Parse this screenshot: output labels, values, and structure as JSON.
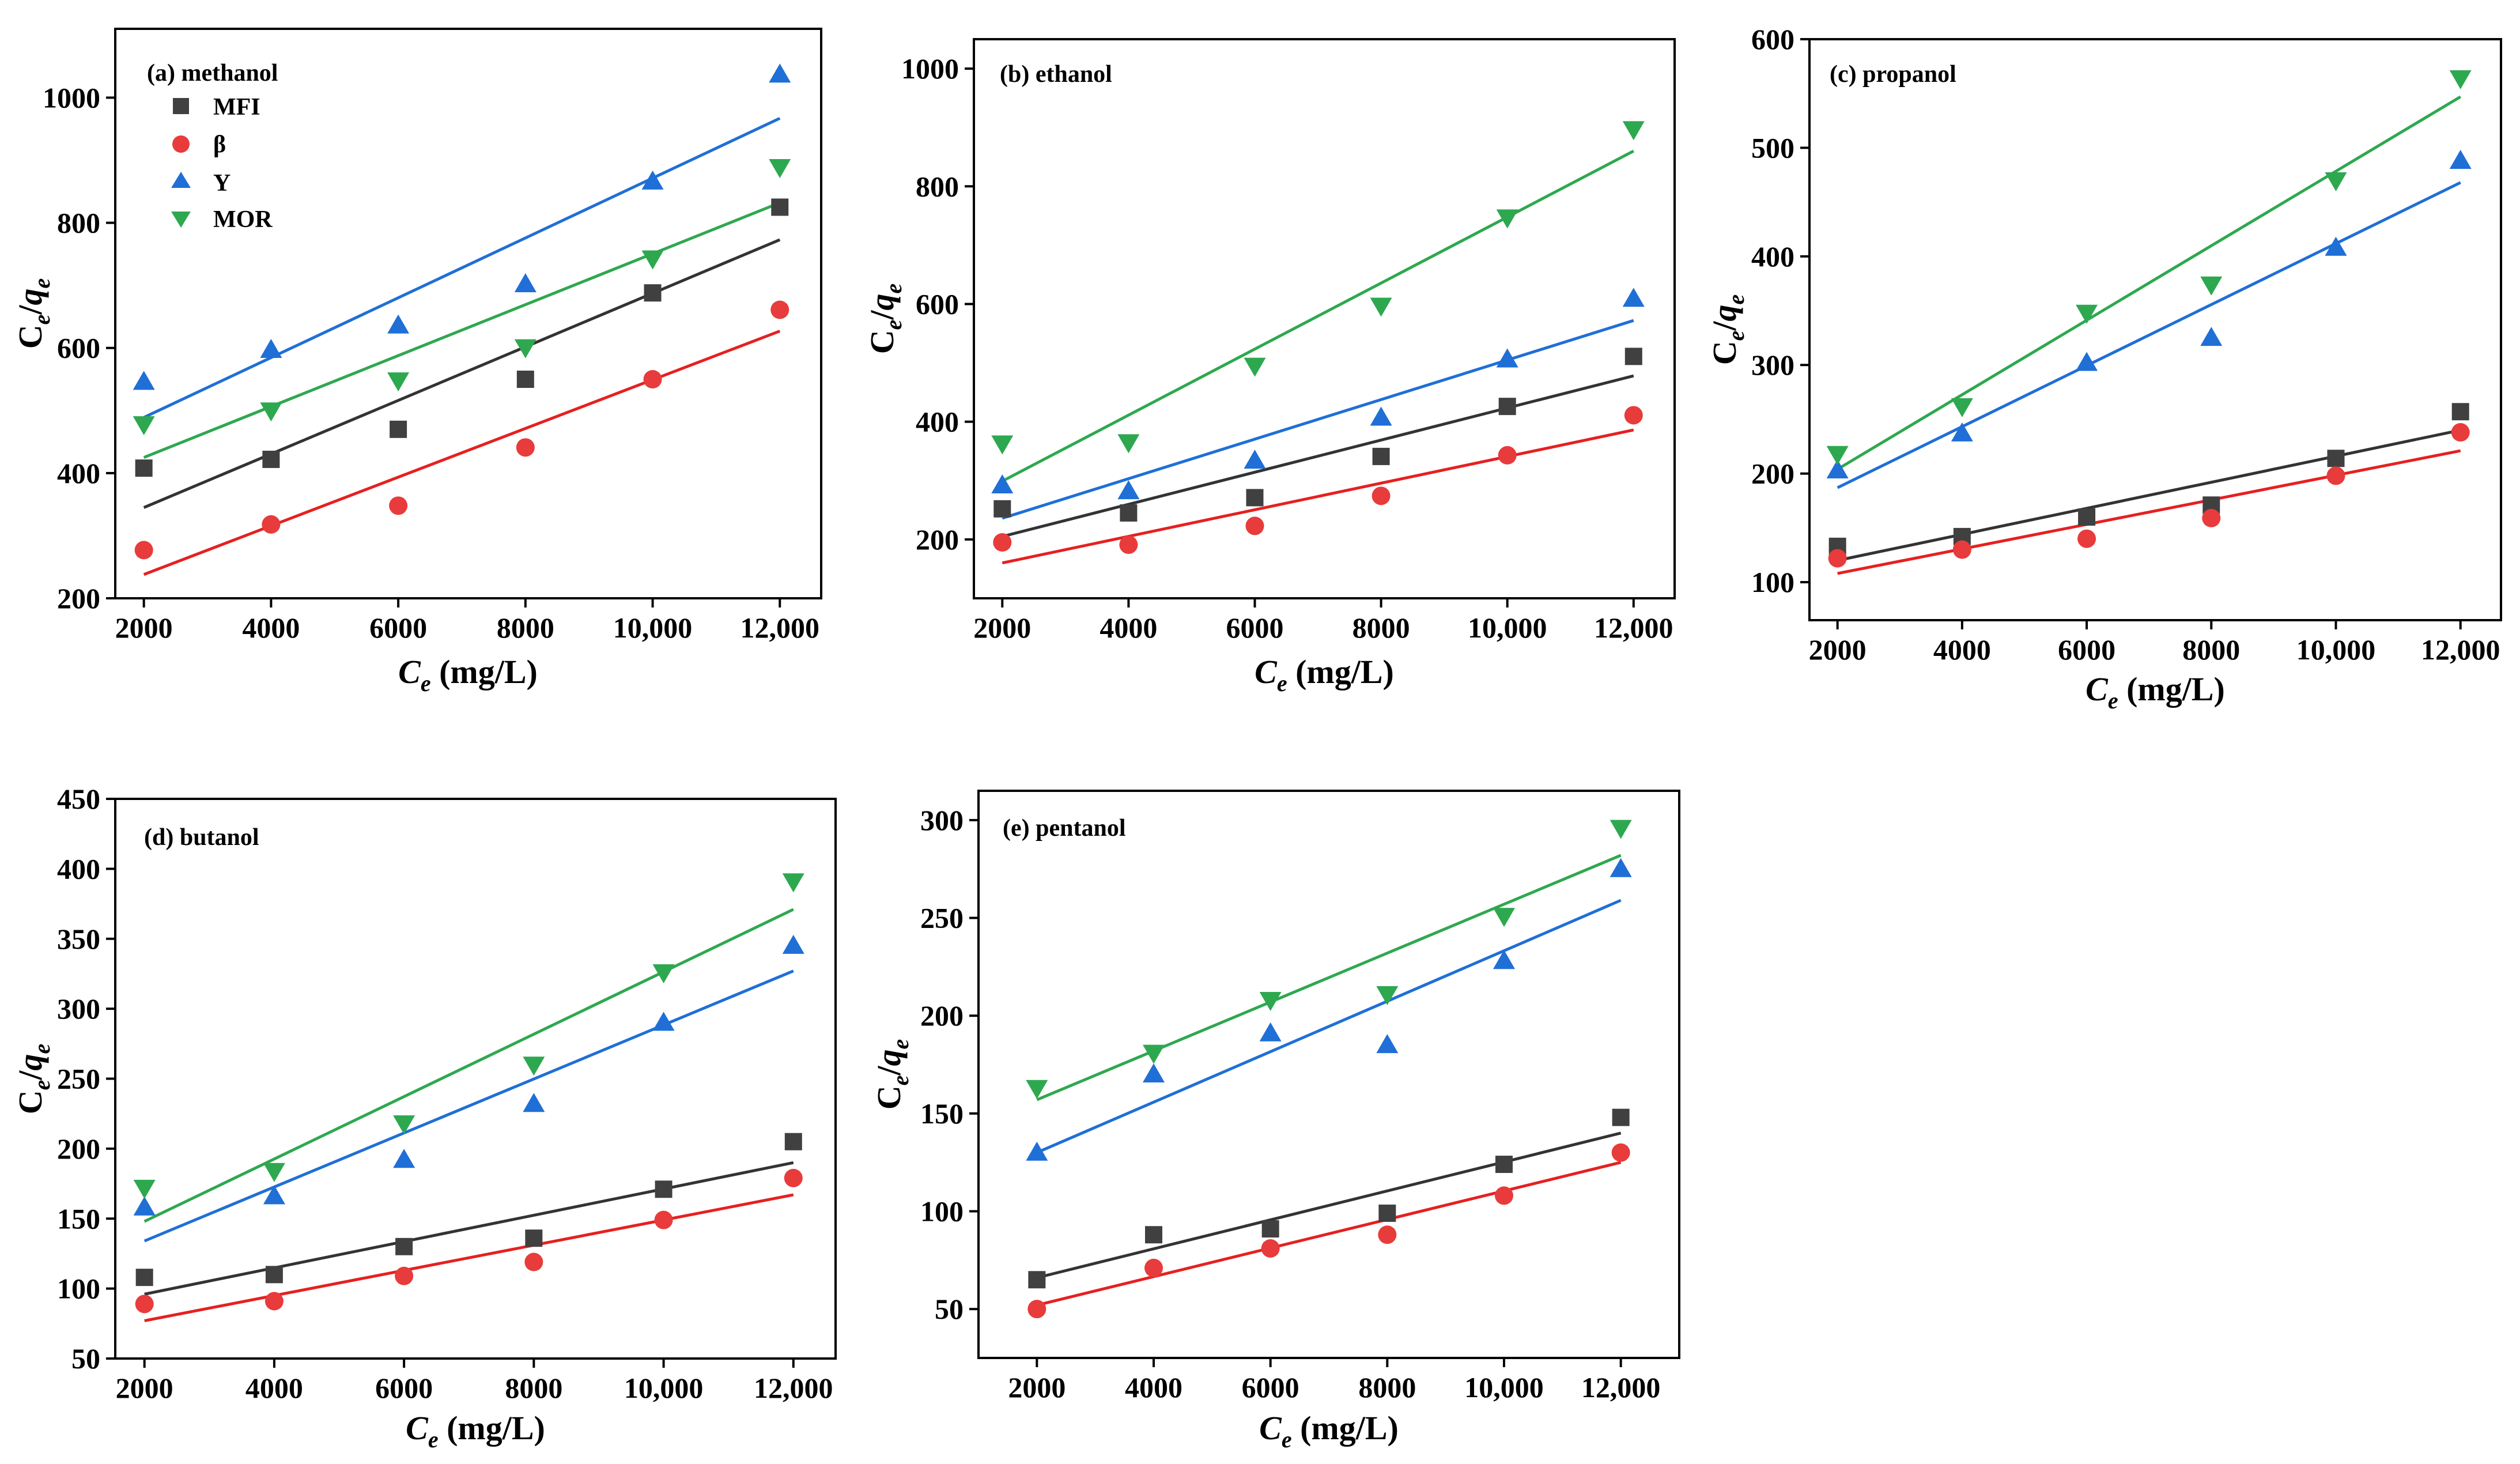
{
  "figure": {
    "legend": [
      {
        "name": "MFI",
        "label": "MFI",
        "color": "#404040",
        "marker": "square"
      },
      {
        "name": "beta",
        "label": "β",
        "color": "#e83b3b",
        "marker": "circle"
      },
      {
        "name": "Y",
        "label": "Y",
        "color": "#1f6fd6",
        "marker": "triangle-up"
      },
      {
        "name": "MOR",
        "label": "MOR",
        "color": "#2ea84f",
        "marker": "triangle-down"
      }
    ],
    "line_colors": {
      "MFI": "#333333",
      "beta": "#e62020",
      "Y": "#1f6fd6",
      "MOR": "#2ea84f"
    }
  },
  "chart_data": [
    {
      "type": "scatter",
      "title": "(a) methanol",
      "xlabel_main": "C",
      "xlabel_sub": "e",
      "xlabel_unit": " (mg/L)",
      "ylabel_parts": {
        "c": "C",
        "e1": "e",
        "slash": "/",
        "q": "q",
        "e2": "e"
      },
      "x": [
        2000,
        4000,
        6000,
        8000,
        10000,
        12000
      ],
      "xticks": [
        2000,
        4000,
        6000,
        8000,
        10000,
        12000
      ],
      "xtick_labels": [
        "2000",
        "4000",
        "6000",
        "8000",
        "10,000",
        "12,000"
      ],
      "yticks": [
        200,
        400,
        600,
        800,
        1000
      ],
      "ytick_labels": [
        "200",
        "400",
        "600",
        "800",
        "1000"
      ],
      "xlim": [
        1550,
        12650
      ],
      "ylim": [
        200,
        1110
      ],
      "series": [
        {
          "name": "MFI",
          "values": [
            408,
            422,
            470,
            550,
            688,
            825
          ],
          "fit": [
            345,
            773
          ]
        },
        {
          "name": "beta",
          "values": [
            277,
            318,
            348,
            441,
            550,
            661
          ],
          "fit": [
            238,
            627
          ]
        },
        {
          "name": "Y",
          "values": [
            546,
            597,
            636,
            702,
            866,
            1037
          ],
          "fit": [
            489,
            967
          ]
        },
        {
          "name": "MOR",
          "values": [
            478,
            500,
            548,
            601,
            743,
            889
          ],
          "fit": [
            425,
            832
          ]
        }
      ]
    },
    {
      "type": "scatter",
      "title": "(b) ethanol",
      "xlabel_main": "C",
      "xlabel_sub": "e",
      "xlabel_unit": " (mg/L)",
      "ylabel_parts": {
        "c": "C",
        "e1": "e",
        "slash": "/",
        "q": "q",
        "e2": "e"
      },
      "x": [
        2000,
        4000,
        6000,
        8000,
        10000,
        12000
      ],
      "xticks": [
        2000,
        4000,
        6000,
        8000,
        10000,
        12000
      ],
      "xtick_labels": [
        "2000",
        "4000",
        "6000",
        "8000",
        "10,000",
        "12,000"
      ],
      "yticks": [
        200,
        400,
        600,
        800,
        1000
      ],
      "ytick_labels": [
        "200",
        "400",
        "600",
        "800",
        "1000"
      ],
      "xlim": [
        1550,
        12650
      ],
      "ylim": [
        100,
        1050
      ],
      "series": [
        {
          "name": "MFI",
          "values": [
            252,
            245,
            271,
            341,
            426,
            511
          ],
          "fit": [
            205,
            478
          ]
        },
        {
          "name": "beta",
          "values": [
            195,
            191,
            223,
            274,
            343,
            411
          ],
          "fit": [
            160,
            386
          ]
        },
        {
          "name": "Y",
          "values": [
            292,
            282,
            334,
            407,
            506,
            609
          ],
          "fit": [
            236,
            572
          ]
        },
        {
          "name": "MOR",
          "values": [
            363,
            365,
            495,
            597,
            747,
            897
          ],
          "fit": [
            299,
            860
          ]
        }
      ]
    },
    {
      "type": "scatter",
      "title": "(c) propanol",
      "xlabel_main": "C",
      "xlabel_sub": "e",
      "xlabel_unit": " (mg/L)",
      "ylabel_parts": {
        "c": "C",
        "e1": "e",
        "slash": "/",
        "q": "q",
        "e2": "e"
      },
      "x": [
        2000,
        4000,
        6000,
        8000,
        10000,
        12000
      ],
      "xticks": [
        2000,
        4000,
        6000,
        8000,
        10000,
        12000
      ],
      "xtick_labels": [
        "2000",
        "4000",
        "6000",
        "8000",
        "10,000",
        "12,000"
      ],
      "yticks": [
        100,
        200,
        300,
        400,
        500,
        600
      ],
      "ytick_labels": [
        "100",
        "200",
        "300",
        "400",
        "500",
        "600"
      ],
      "xlim": [
        1550,
        12650
      ],
      "ylim": [
        65,
        600
      ],
      "series": [
        {
          "name": "MFI",
          "values": [
            133,
            142,
            160,
            171,
            214,
            257
          ],
          "fit": [
            120,
            240
          ]
        },
        {
          "name": "beta",
          "values": [
            122,
            130,
            140,
            159,
            198,
            238
          ],
          "fit": [
            108,
            221
          ]
        },
        {
          "name": "Y",
          "values": [
            203,
            237,
            302,
            325,
            408,
            488
          ],
          "fit": [
            187,
            468
          ]
        },
        {
          "name": "MOR",
          "values": [
            218,
            262,
            348,
            374,
            470,
            564
          ],
          "fit": [
            204,
            547
          ]
        }
      ]
    },
    {
      "type": "scatter",
      "title": "(d) butanol",
      "xlabel_main": "C",
      "xlabel_sub": "e",
      "xlabel_unit": " (mg/L)",
      "ylabel_parts": {
        "c": "C",
        "e1": "e",
        "slash": "/",
        "q": "q",
        "e2": "e"
      },
      "x": [
        2000,
        4000,
        6000,
        8000,
        10000,
        12000
      ],
      "xticks": [
        2000,
        4000,
        6000,
        8000,
        10000,
        12000
      ],
      "xtick_labels": [
        "2000",
        "4000",
        "6000",
        "8000",
        "10,000",
        "12,000"
      ],
      "yticks": [
        50,
        100,
        150,
        200,
        250,
        300,
        350,
        400,
        450
      ],
      "ytick_labels": [
        "50",
        "100",
        "150",
        "200",
        "250",
        "300",
        "350",
        "400",
        "450"
      ],
      "xlim": [
        1550,
        12650
      ],
      "ylim": [
        50,
        450
      ],
      "series": [
        {
          "name": "MFI",
          "values": [
            108,
            110,
            130,
            136,
            171,
            205
          ],
          "fit": [
            96,
            190
          ]
        },
        {
          "name": "beta",
          "values": [
            89,
            91,
            109,
            119,
            149,
            179
          ],
          "fit": [
            77,
            167
          ]
        },
        {
          "name": "Y",
          "values": [
            158,
            166,
            192,
            232,
            290,
            345
          ],
          "fit": [
            134,
            327
          ]
        },
        {
          "name": "MOR",
          "values": [
            172,
            184,
            218,
            260,
            326,
            391
          ],
          "fit": [
            148,
            371
          ]
        }
      ]
    },
    {
      "type": "scatter",
      "title": "(e) pentanol",
      "xlabel_main": "C",
      "xlabel_sub": "e",
      "xlabel_unit": " (mg/L)",
      "ylabel_parts": {
        "c": "C",
        "e1": "e",
        "slash": "/",
        "q": "q",
        "e2": "e"
      },
      "x": [
        2000,
        4000,
        6000,
        8000,
        10000,
        12000
      ],
      "xticks": [
        2000,
        4000,
        6000,
        8000,
        10000,
        12000
      ],
      "xtick_labels": [
        "2000",
        "4000",
        "6000",
        "8000",
        "10,000",
        "12,000"
      ],
      "yticks": [
        50,
        100,
        150,
        200,
        250,
        300
      ],
      "ytick_labels": [
        "50",
        "100",
        "150",
        "200",
        "250",
        "300"
      ],
      "xlim": [
        1000,
        13000
      ],
      "ylim": [
        25,
        315
      ],
      "series": [
        {
          "name": "MFI",
          "values": [
            65,
            88,
            91,
            99,
            124,
            148
          ],
          "fit": [
            66,
            140
          ]
        },
        {
          "name": "beta",
          "values": [
            50,
            71,
            81,
            88,
            108,
            130
          ],
          "fit": [
            52,
            125
          ]
        },
        {
          "name": "Y",
          "values": [
            130,
            170,
            191,
            185,
            228,
            275
          ],
          "fit": [
            130,
            259
          ]
        },
        {
          "name": "MOR",
          "values": [
            163,
            181,
            208,
            211,
            251,
            296
          ],
          "fit": [
            157,
            282
          ]
        }
      ]
    }
  ]
}
